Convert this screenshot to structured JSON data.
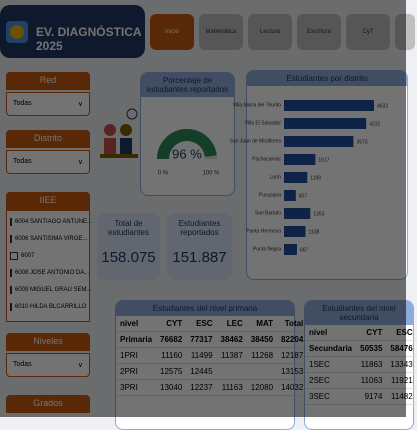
{
  "header": {
    "title": "EV. DIAGNÓSTICA 2025"
  },
  "tabs": [
    "Inicio",
    "Matemática",
    "Lectura",
    "Escritura",
    "CyT"
  ],
  "filters": {
    "red": {
      "label": "Red",
      "value": "Todas"
    },
    "distrito": {
      "label": "Distrito",
      "value": "Todas"
    },
    "iiee": {
      "label": "IIEE",
      "items": [
        "6004 SANTIAGO ANTUNE...",
        "6006 SANTISIMA VIRGE...",
        "6007",
        "6008 JOSE ANTONIO DA...",
        "6009 MIGUEL GRAU SEM...",
        "6010 HILDA BLCARRILLO"
      ]
    },
    "niveles": {
      "label": "Niveles",
      "value": "Todas"
    },
    "grados": {
      "label": "Grados"
    }
  },
  "gauge": {
    "type": "gauge",
    "title": "Porcentaje de estudiantes reportados",
    "value": 96,
    "value_label": "96 %",
    "ticks": [
      {
        "value": 0,
        "label": "0 %"
      },
      {
        "value": 100,
        "label": "100 %"
      }
    ],
    "color": "#2e8b57"
  },
  "chart_data": {
    "type": "bar",
    "orientation": "horizontal",
    "title": "Estudiantes por distrito",
    "color": "#1f4e9c",
    "categories": [
      "Villa María del Triunfo",
      "Villa El Salvador",
      "San Juan de Miraflores",
      "Pachacamac",
      "Lurín",
      "Pucusana",
      "San Bartolo",
      "Punta Hermosa",
      "Punta Negra"
    ],
    "values": [
      4632,
      4231,
      3573,
      1617,
      1199,
      607,
      1353,
      1108,
      667
    ]
  },
  "kpis": [
    {
      "label": "Total de estudiantes",
      "value": "158.075"
    },
    {
      "label": "Estudiantes reportados",
      "value": "151.887"
    }
  ],
  "tables": [
    {
      "title": "Estudiantes del nivel primaria",
      "columns": [
        "nivel",
        "CYT",
        "ESC",
        "LEC",
        "MAT",
        "Total"
      ],
      "rows": [
        [
          "Primaria",
          "76682",
          "77317",
          "38462",
          "38450",
          "82204"
        ],
        [
          "1PRI",
          "11160",
          "11499",
          "11387",
          "11268",
          "12187"
        ],
        [
          "2PRI",
          "12575",
          "12445",
          null,
          null,
          "13153"
        ],
        [
          "3PRI",
          "13040",
          "12237",
          "11163",
          "12080",
          "14032"
        ]
      ]
    },
    {
      "title": "Estudiantes del nivel secundaria",
      "columns": [
        "nivel",
        "CYT",
        "ESC"
      ],
      "rows": [
        [
          "Secundaria",
          "50535",
          "58476"
        ],
        [
          "1SEC",
          "11863",
          "13343"
        ],
        [
          "2SEC",
          "11063",
          "11921"
        ],
        [
          "3SEC",
          "9174",
          "11482"
        ]
      ]
    }
  ]
}
